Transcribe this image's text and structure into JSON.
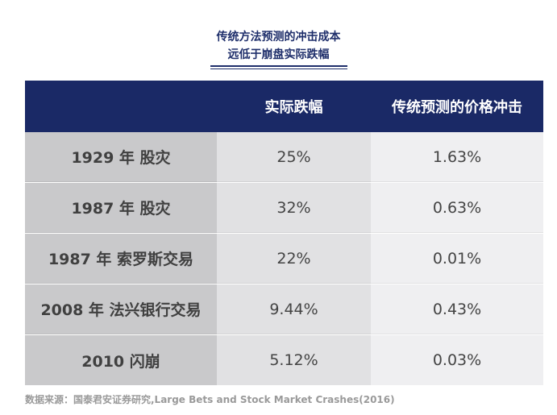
{
  "chart_data": {
    "type": "table",
    "title_lines": [
      "传统方法预测的冲击成本",
      "远低于崩盘实际跌幅"
    ],
    "columns": [
      "",
      "实际跌幅",
      "传统预测的价格冲击"
    ],
    "rows": [
      {
        "event": "1929 年  股灾",
        "actual_drop": "25%",
        "predicted_impact": "1.63%"
      },
      {
        "event": "1987 年  股灾",
        "actual_drop": "32%",
        "predicted_impact": "0.63%"
      },
      {
        "event": "1987 年  索罗斯交易",
        "actual_drop": "22%",
        "predicted_impact": "0.01%"
      },
      {
        "event": "2008 年  法兴银行交易",
        "actual_drop": "9.44%",
        "predicted_impact": "0.43%"
      },
      {
        "event": "2010  闪崩",
        "actual_drop": "5.12%",
        "predicted_impact": "0.03%"
      }
    ],
    "values": {
      "actual_drop": [
        25,
        32,
        22,
        9.44,
        5.12
      ],
      "predicted_impact": [
        1.63,
        0.63,
        0.01,
        0.43,
        0.03
      ]
    }
  },
  "source": "数据来源：国泰君安证券研究,Large Bets and Stock Market Crashes(2016)",
  "colors": {
    "title": "#1f2f6b",
    "header_bg": "#1a2966",
    "col0_bg": "#c9c9cb",
    "col1_bg": "#e1e1e3",
    "col2_bg": "#efeff1"
  }
}
